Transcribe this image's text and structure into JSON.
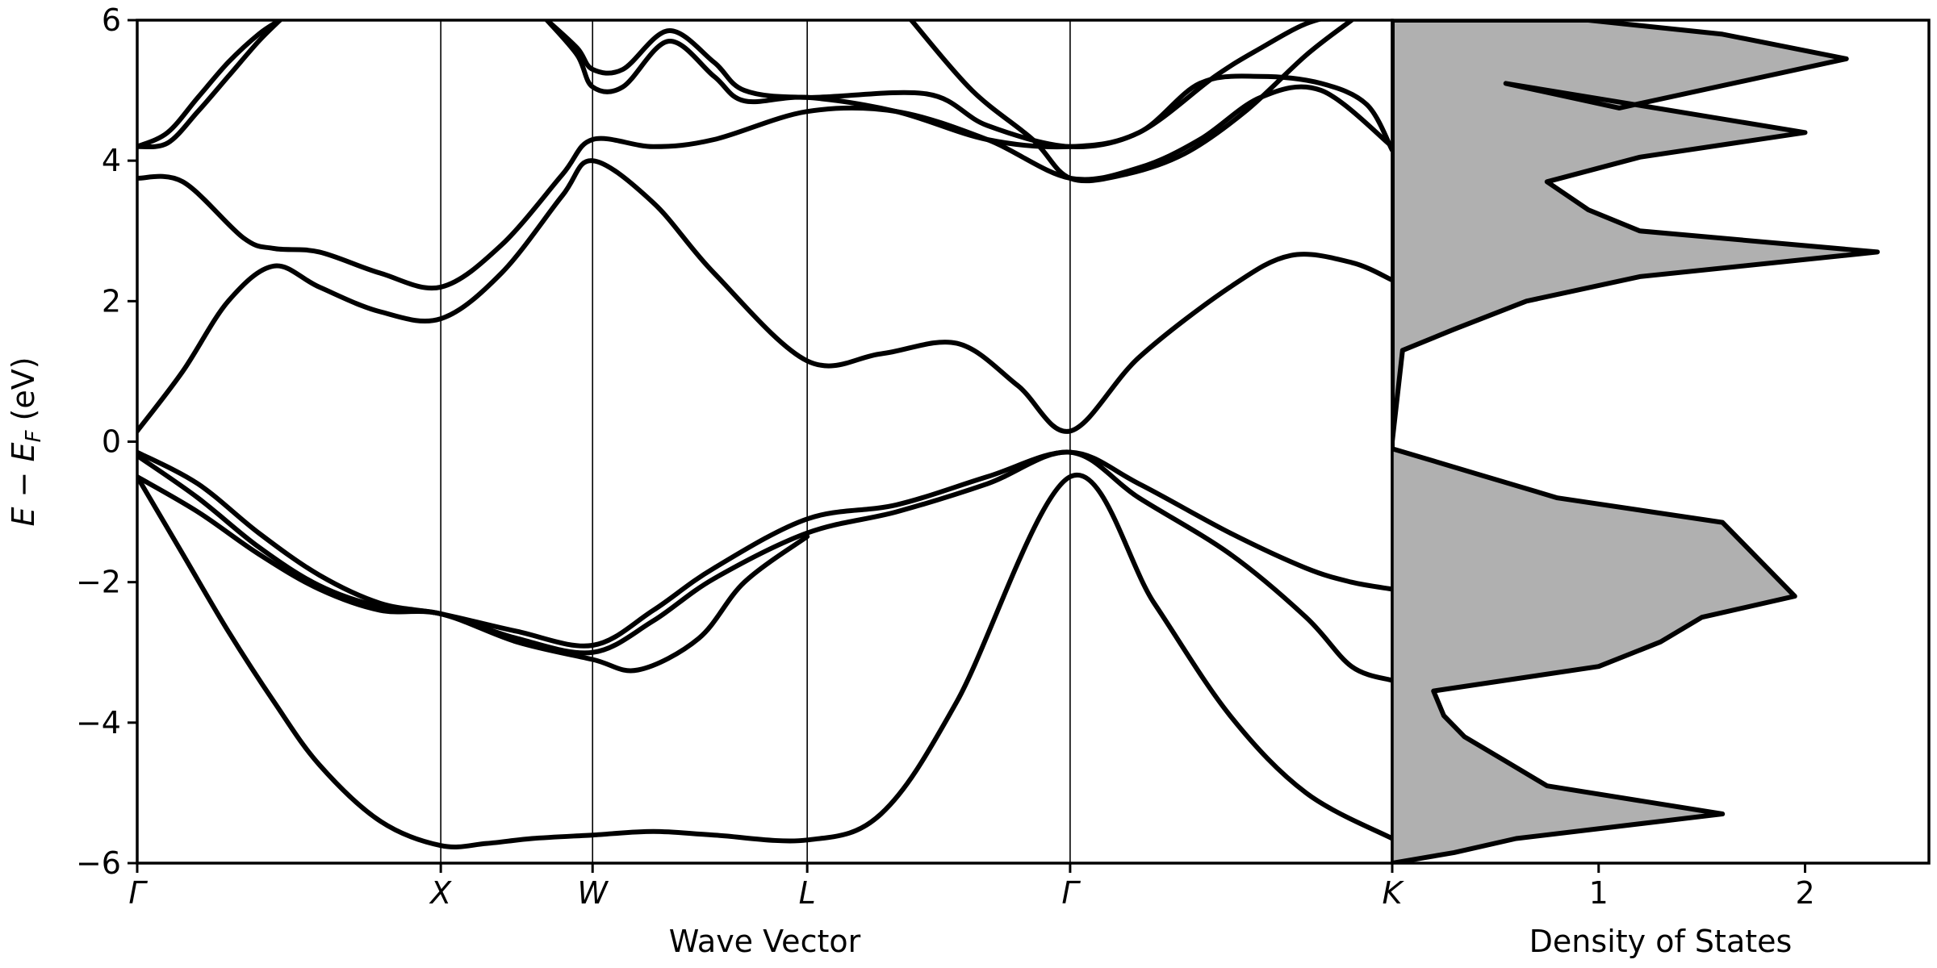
{
  "chart_data": [
    {
      "type": "line",
      "panel": "band-structure",
      "xlabel": "Wave Vector",
      "ylabel_main": "E − E",
      "ylabel_sub": "F",
      "ylabel_unit": " (eV)",
      "ylim": [
        -6,
        6
      ],
      "yticks": [
        -6,
        -4,
        -2,
        0,
        2,
        4,
        6
      ],
      "ytick_labels": [
        "−6",
        "−4",
        "−2",
        "0",
        "2",
        "4",
        "6"
      ],
      "kpath": [
        "Γ",
        "X",
        "W",
        "L",
        "Γ",
        "K"
      ],
      "kpositions": [
        0,
        1.0,
        1.5,
        2.207,
        3.073,
        4.134
      ],
      "series": [
        {
          "x": [
            0,
            0.15,
            0.3,
            0.45,
            0.6,
            0.8,
            1.0,
            1.15,
            1.3,
            1.5,
            1.7,
            1.9,
            2.207,
            2.45,
            2.7,
            3.073,
            3.35,
            3.6,
            3.85,
            4.134
          ],
          "y": [
            -0.5,
            -1.6,
            -2.7,
            -3.7,
            -4.6,
            -5.4,
            -5.75,
            -5.72,
            -5.65,
            -5.6,
            -5.55,
            -5.6,
            -5.67,
            -5.3,
            -3.7,
            -0.5,
            -2.3,
            -3.9,
            -5.0,
            -5.65
          ]
        },
        {
          "x": [
            0,
            0.2,
            0.4,
            0.6,
            0.8,
            1.0,
            1.25,
            1.5,
            1.7,
            1.9,
            2.207,
            2.5,
            2.8,
            3.073,
            3.3,
            3.6,
            3.85,
            4.0,
            4.134
          ],
          "y": [
            -0.15,
            -0.6,
            -1.3,
            -1.9,
            -2.3,
            -2.45,
            -2.7,
            -2.9,
            -2.4,
            -1.8,
            -1.1,
            -0.9,
            -0.5,
            -0.15,
            -0.6,
            -1.3,
            -1.8,
            -2.0,
            -2.1
          ]
        },
        {
          "x": [
            0,
            0.2,
            0.4,
            0.6,
            0.8,
            1.0,
            1.25,
            1.5,
            1.7,
            1.9,
            2.207,
            2.5,
            2.8,
            3.073,
            3.3,
            3.6,
            3.85,
            4.0,
            4.134
          ],
          "y": [
            -0.2,
            -0.8,
            -1.5,
            -2.05,
            -2.35,
            -2.45,
            -2.8,
            -3.0,
            -2.55,
            -1.95,
            -1.3,
            -1.0,
            -0.6,
            -0.15,
            -0.8,
            -1.6,
            -2.5,
            -3.2,
            -3.4
          ]
        },
        {
          "x": [
            0,
            0.2,
            0.4,
            0.6,
            0.8,
            1.0,
            1.25,
            1.5,
            1.65,
            1.85,
            2.0,
            2.207
          ],
          "y": [
            -0.5,
            -1.0,
            -1.6,
            -2.1,
            -2.4,
            -2.45,
            -2.85,
            -3.1,
            -3.25,
            -2.8,
            -2.0,
            -1.35
          ]
        },
        {
          "x": [
            0,
            0.15,
            0.3,
            0.45,
            0.6,
            0.8,
            1.0,
            1.2,
            1.4,
            1.5,
            1.7,
            1.9,
            2.207,
            2.45,
            2.7,
            2.9,
            3.073,
            3.3,
            3.6,
            3.8,
            4.0,
            4.134
          ],
          "y": [
            0.15,
            1.0,
            2.0,
            2.5,
            2.2,
            1.85,
            1.75,
            2.4,
            3.5,
            4.0,
            3.4,
            2.4,
            1.15,
            1.25,
            1.4,
            0.8,
            0.15,
            1.2,
            2.2,
            2.65,
            2.55,
            2.3
          ]
        },
        {
          "x": [
            0,
            0.15,
            0.35,
            0.45,
            0.6,
            0.8,
            1.0,
            1.2,
            1.4,
            1.5,
            1.7,
            1.9,
            2.207,
            2.5,
            2.8,
            3.073,
            3.3,
            3.5,
            3.7,
            3.9,
            4.134
          ],
          "y": [
            3.75,
            3.7,
            2.9,
            2.75,
            2.7,
            2.4,
            2.2,
            2.8,
            3.8,
            4.3,
            4.2,
            4.3,
            4.7,
            4.7,
            4.3,
            3.75,
            3.9,
            4.3,
            4.9,
            5.0,
            4.2
          ]
        },
        {
          "x": [
            0,
            0.1,
            0.2,
            0.3,
            0.4,
            0.47
          ],
          "y": [
            4.2,
            4.4,
            4.9,
            5.4,
            5.8,
            6.0
          ]
        },
        {
          "x": [
            0,
            0.1,
            0.2,
            0.3,
            0.4,
            0.47
          ],
          "y": [
            4.2,
            4.25,
            4.7,
            5.2,
            5.7,
            6.0
          ]
        },
        {
          "x": [
            1.35,
            1.45,
            1.5,
            1.6,
            1.75,
            1.9,
            2.0,
            2.207,
            2.6,
            2.8,
            3.073,
            3.3,
            3.5,
            3.7,
            3.9,
            4.05,
            4.134
          ],
          "y": [
            6.0,
            5.6,
            5.3,
            5.3,
            5.85,
            5.4,
            5.0,
            4.9,
            4.95,
            4.5,
            4.2,
            4.4,
            5.1,
            5.2,
            5.1,
            4.8,
            4.15
          ]
        },
        {
          "x": [
            1.35,
            1.45,
            1.5,
            1.6,
            1.75,
            1.9,
            2.0,
            2.207,
            2.5,
            2.8,
            3.073,
            3.3,
            3.55,
            3.7,
            3.85,
            3.98
          ],
          "y": [
            6.0,
            5.5,
            5.05,
            5.05,
            5.7,
            5.2,
            4.85,
            4.9,
            4.7,
            4.3,
            4.2,
            4.4,
            5.2,
            5.6,
            5.95,
            6.1
          ]
        },
        {
          "x": [
            2.55,
            2.75,
            2.95,
            3.073,
            3.25,
            3.45,
            3.65,
            3.85,
            4.0
          ],
          "y": [
            6.0,
            5.0,
            4.3,
            3.75,
            3.8,
            4.1,
            4.7,
            5.5,
            6.0
          ]
        }
      ]
    },
    {
      "type": "area",
      "panel": "density-of-states",
      "xlabel": "Density of States",
      "xlim": [
        0,
        2.6
      ],
      "xticks": [
        1,
        2
      ],
      "xtick_labels": [
        "1",
        "2"
      ],
      "x": [
        0.0,
        0.05,
        0.3,
        0.65,
        1.2,
        2.35,
        1.2,
        0.95,
        0.75,
        1.2,
        2.0,
        0.55,
        1.1,
        2.2,
        1.6,
        0.95,
        0.0,
        0.0,
        0.4,
        0.8,
        1.6,
        1.95,
        1.5,
        1.3,
        1.0,
        0.2,
        0.25,
        0.35,
        0.55,
        0.75,
        1.6,
        0.6,
        0.3,
        0.0
      ],
      "y": [
        0.0,
        1.3,
        1.6,
        2.0,
        2.35,
        2.7,
        3.0,
        3.3,
        3.7,
        4.05,
        4.4,
        5.1,
        4.75,
        5.45,
        5.8,
        6.0,
        6.0,
        -0.1,
        -0.45,
        -0.8,
        -1.15,
        -2.2,
        -2.5,
        -2.85,
        -3.2,
        -3.55,
        -3.9,
        -4.2,
        -4.55,
        -4.9,
        -5.3,
        -5.65,
        -5.85,
        -6.0
      ]
    }
  ]
}
